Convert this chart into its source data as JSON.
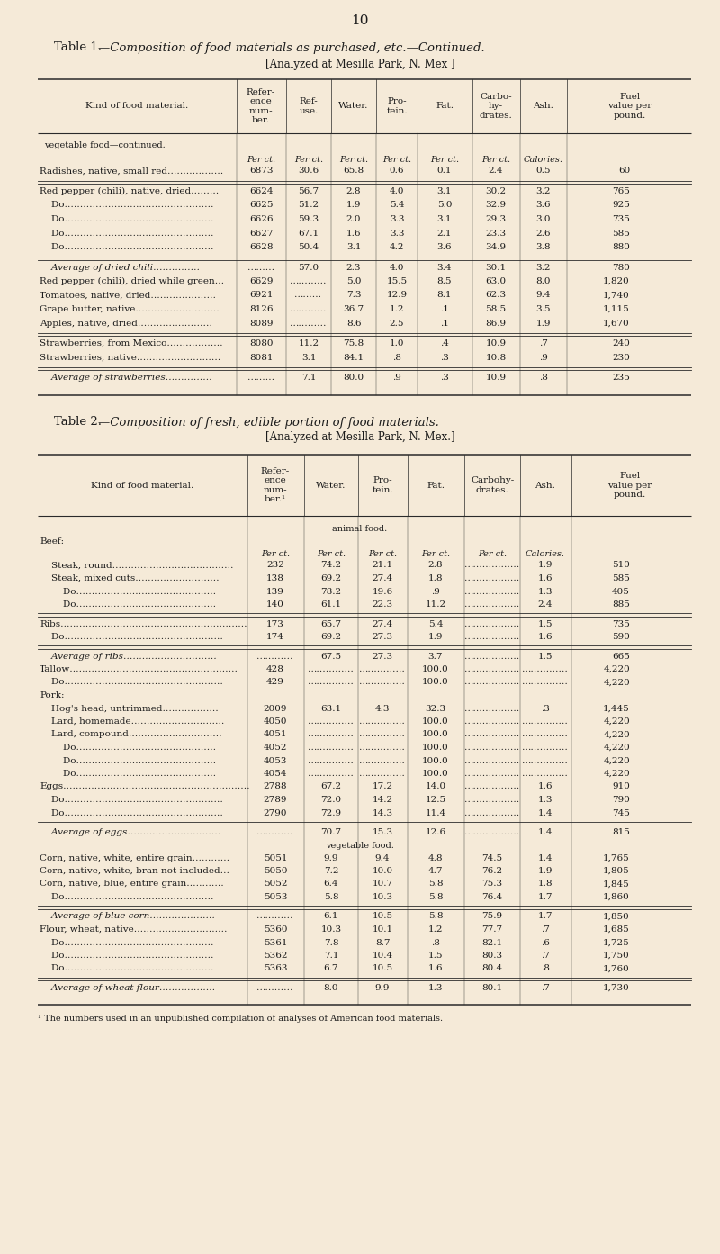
{
  "page_number": "10",
  "bg_color": "#f5ead8",
  "table1_title_prefix": "Table 1.",
  "table1_title_rest": "—Composition of food materials as purchased, etc.—Continued.",
  "table1_subtitle": "[Analyzed at Mesilla Park, N. Mex ]",
  "table1_section": "vegetable food—continued.",
  "table1_units_row": [
    "",
    "",
    "Per ct.",
    "Per ct.",
    "Per ct.",
    "Per ct.",
    "Per ct.",
    "Per ct.",
    "Calories."
  ],
  "table1_rows": [
    [
      "Radishes, native, small red………………",
      "6873",
      "30.6",
      "65.8",
      "0.6",
      "0.1",
      "2.4",
      "0.5",
      "60"
    ],
    [
      "[double_rule]",
      "",
      "",
      "",
      "",
      "",
      "",
      "",
      ""
    ],
    [
      "Red pepper (chili), native, dried………",
      "6624",
      "56.7",
      "2.8",
      "4.0",
      "3.1",
      "30.2",
      "3.2",
      "765"
    ],
    [
      "    Do…………………………………………",
      "6625",
      "51.2",
      "1.9",
      "5.4",
      "5.0",
      "32.9",
      "3.6",
      "925"
    ],
    [
      "    Do…………………………………………",
      "6626",
      "59.3",
      "2.0",
      "3.3",
      "3.1",
      "29.3",
      "3.0",
      "735"
    ],
    [
      "    Do…………………………………………",
      "6627",
      "67.1",
      "1.6",
      "3.3",
      "2.1",
      "23.3",
      "2.6",
      "585"
    ],
    [
      "    Do…………………………………………",
      "6628",
      "50.4",
      "3.1",
      "4.2",
      "3.6",
      "34.9",
      "3.8",
      "880"
    ],
    [
      "[double_rule]",
      "",
      "",
      "",
      "",
      "",
      "",
      "",
      ""
    ],
    [
      "    Average of dried chili……………",
      "………",
      "57.0",
      "2.3",
      "4.0",
      "3.4",
      "30.1",
      "3.2",
      "780"
    ],
    [
      "Red pepper (chili), dried while green…",
      "6629",
      "…………",
      "5.0",
      "15.5",
      "8.5",
      "63.0",
      "8.0",
      "1,820"
    ],
    [
      "Tomatoes, native, dried…………………",
      "6921",
      "………",
      "7.3",
      "12.9",
      "8.1",
      "62.3",
      "9.4",
      "1,740"
    ],
    [
      "Grape butter, native………………………",
      "8126",
      "…………",
      "36.7",
      "1.2",
      ".1",
      "58.5",
      "3.5",
      "1,115"
    ],
    [
      "Apples, native, dried……………………",
      "8089",
      "…………",
      "8.6",
      "2.5",
      ".1",
      "86.9",
      "1.9",
      "1,670"
    ],
    [
      "[double_rule]",
      "",
      "",
      "",
      "",
      "",
      "",
      "",
      ""
    ],
    [
      "Strawberries, from Mexico………………",
      "8080",
      "11.2",
      "75.8",
      "1.0",
      ".4",
      "10.9",
      ".7",
      "240"
    ],
    [
      "Strawberries, native………………………",
      "8081",
      "3.1",
      "84.1",
      ".8",
      ".3",
      "10.8",
      ".9",
      "230"
    ],
    [
      "[double_rule]",
      "",
      "",
      "",
      "",
      "",
      "",
      "",
      ""
    ],
    [
      "    Average of strawberries……………",
      "………",
      "7.1",
      "80.0",
      ".9",
      ".3",
      "10.9",
      ".8",
      "235"
    ]
  ],
  "table2_title_prefix": "Table 2.",
  "table2_title_rest": "—Composition of fresh, edible portion of food materials.",
  "table2_subtitle": "[Analyzed at Mesilla Park, N. Mex.]",
  "table2_section1": "animal food.",
  "table2_beef": "Beef:",
  "table2_units_row": [
    "",
    "",
    "Per ct.",
    "Per ct.",
    "Per ct.",
    "Per ct.",
    "Per ct.",
    "Calories."
  ],
  "table2_rows": [
    [
      "    Steak, round…………………………………",
      "232",
      "74.2",
      "21.1",
      "2.8",
      "………………",
      "1.9",
      "510"
    ],
    [
      "    Steak, mixed cuts………………………",
      "138",
      "69.2",
      "27.4",
      "1.8",
      "………………",
      "1.6",
      "585"
    ],
    [
      "        Do………………………………………",
      "139",
      "78.2",
      "19.6",
      ".9",
      "………………",
      "1.3",
      "405"
    ],
    [
      "        Do………………………………………",
      "140",
      "61.1",
      "22.3",
      "11.2",
      "………………",
      "2.4",
      "885"
    ],
    [
      "[double_rule]",
      "",
      "",
      "",
      "",
      "",
      "",
      ""
    ],
    [
      "Ribs……………………………………………………",
      "173",
      "65.7",
      "27.4",
      "5.4",
      "………………",
      "1.5",
      "735"
    ],
    [
      "    Do……………………………………………",
      "174",
      "69.2",
      "27.3",
      "1.9",
      "………………",
      "1.6",
      "590"
    ],
    [
      "[double_rule]",
      "",
      "",
      "",
      "",
      "",
      "",
      ""
    ],
    [
      "    Average of ribs…………………………",
      "…………",
      "67.5",
      "27.3",
      "3.7",
      "………………",
      "1.5",
      "665"
    ],
    [
      "Tallow………………………………………………",
      "428",
      "……………",
      "……………",
      "100.0",
      "………………",
      "……………",
      "4,220"
    ],
    [
      "    Do……………………………………………",
      "429",
      "……………",
      "……………",
      "100.0",
      "………………",
      "……………",
      "4,220"
    ],
    [
      "Pork:",
      "",
      "",
      "",
      "",
      "",
      "",
      ""
    ],
    [
      "    Hog's head, untrimmed………………",
      "2009",
      "63.1",
      "4.3",
      "32.3",
      "………………",
      ".3",
      "1,445"
    ],
    [
      "    Lard, homemade…………………………",
      "4050",
      "……………",
      "……………",
      "100.0",
      "………………",
      "……………",
      "4,220"
    ],
    [
      "    Lard, compound…………………………",
      "4051",
      "……………",
      "……………",
      "100.0",
      "………………",
      "……………",
      "4,220"
    ],
    [
      "        Do………………………………………",
      "4052",
      "……………",
      "……………",
      "100.0",
      "………………",
      "……………",
      "4,220"
    ],
    [
      "        Do………………………………………",
      "4053",
      "……………",
      "……………",
      "100.0",
      "………………",
      "……………",
      "4,220"
    ],
    [
      "        Do………………………………………",
      "4054",
      "……………",
      "……………",
      "100.0",
      "………………",
      "……………",
      "4,220"
    ],
    [
      "Eggs……………………………………………………",
      "2788",
      "67.2",
      "17.2",
      "14.0",
      "………………",
      "1.6",
      "910"
    ],
    [
      "    Do……………………………………………",
      "2789",
      "72.0",
      "14.2",
      "12.5",
      "………………",
      "1.3",
      "790"
    ],
    [
      "    Do……………………………………………",
      "2790",
      "72.9",
      "14.3",
      "11.4",
      "………………",
      "1.4",
      "745"
    ],
    [
      "[double_rule]",
      "",
      "",
      "",
      "",
      "",
      "",
      ""
    ],
    [
      "    Average of eggs…………………………",
      "…………",
      "70.7",
      "15.3",
      "12.6",
      "………………",
      "1.4",
      "815"
    ],
    [
      "[section]vegetable food.",
      "",
      "",
      "",
      "",
      "",
      "",
      ""
    ],
    [
      "Corn, native, white, entire grain…………",
      "5051",
      "9.9",
      "9.4",
      "4.8",
      "74.5",
      "1.4",
      "1,765"
    ],
    [
      "Corn, native, white, bran not included…",
      "5050",
      "7.2",
      "10.0",
      "4.7",
      "76.2",
      "1.9",
      "1,805"
    ],
    [
      "Corn, native, blue, entire grain…………",
      "5052",
      "6.4",
      "10.7",
      "5.8",
      "75.3",
      "1.8",
      "1,845"
    ],
    [
      "    Do…………………………………………",
      "5053",
      "5.8",
      "10.3",
      "5.8",
      "76.4",
      "1.7",
      "1,860"
    ],
    [
      "[double_rule]",
      "",
      "",
      "",
      "",
      "",
      "",
      ""
    ],
    [
      "    Average of blue corn…………………",
      "…………",
      "6.1",
      "10.5",
      "5.8",
      "75.9",
      "1.7",
      "1,850"
    ],
    [
      "Flour, wheat, native…………………………",
      "5360",
      "10.3",
      "10.1",
      "1.2",
      "77.7",
      ".7",
      "1,685"
    ],
    [
      "    Do…………………………………………",
      "5361",
      "7.8",
      "8.7",
      ".8",
      "82.1",
      ".6",
      "1,725"
    ],
    [
      "    Do…………………………………………",
      "5362",
      "7.1",
      "10.4",
      "1.5",
      "80.3",
      ".7",
      "1,750"
    ],
    [
      "    Do…………………………………………",
      "5363",
      "6.7",
      "10.5",
      "1.6",
      "80.4",
      ".8",
      "1,760"
    ],
    [
      "[double_rule]",
      "",
      "",
      "",
      "",
      "",
      "",
      ""
    ],
    [
      "    Average of wheat flour………………",
      "…………",
      "8.0",
      "9.9",
      "1.3",
      "80.1",
      ".7",
      "1,730"
    ]
  ],
  "footnote": "¹ The numbers used in an unpublished compilation of analyses of American food materials."
}
